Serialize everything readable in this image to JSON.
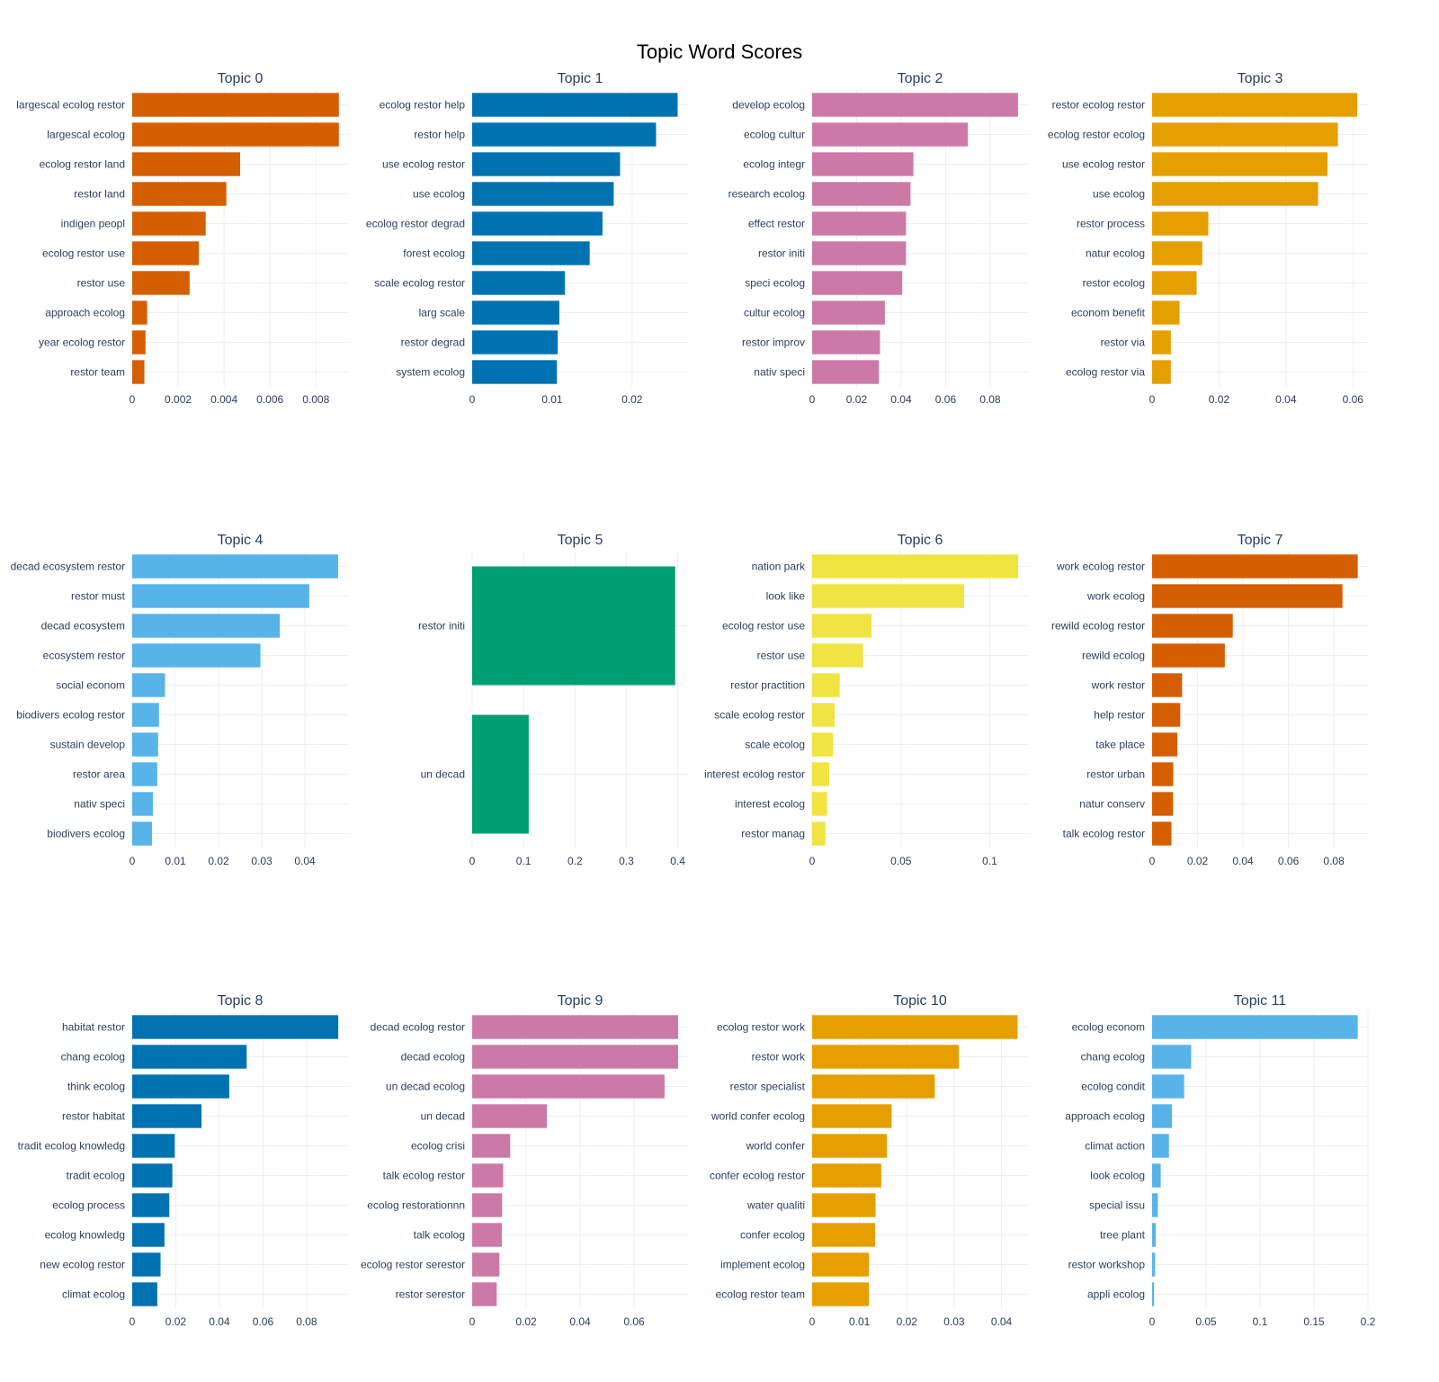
{
  "chart_data": {
    "type": "bar",
    "orientation": "horizontal",
    "title": "Topic Word Scores",
    "grid": true,
    "panels": [
      {
        "title": "Topic 0",
        "color": "#D55E00",
        "xlim": [
          0,
          0.0094
        ],
        "xticks": [
          0,
          0.002,
          0.004,
          0.006,
          0.008
        ],
        "xtick_labels": [
          "0",
          "0.002",
          "0.004",
          "0.006",
          "0.008"
        ],
        "categories": [
          "largescal ecolog restor",
          "largescal ecolog",
          "ecolog restor land",
          "restor land",
          "indigen peopl",
          "ecolog restor use",
          "restor use",
          "approach ecolog",
          "year ecolog restor",
          "restor team"
        ],
        "values": [
          0.009,
          0.009,
          0.0047,
          0.0041,
          0.0032,
          0.0029,
          0.0025,
          0.00065,
          0.00058,
          0.00053
        ]
      },
      {
        "title": "Topic 1",
        "color": "#0072B2",
        "xlim": [
          0,
          0.027
        ],
        "xticks": [
          0,
          0.01,
          0.02
        ],
        "xtick_labels": [
          "0",
          "0.01",
          "0.02"
        ],
        "categories": [
          "ecolog restor help",
          "restor help",
          "use ecolog restor",
          "use ecolog",
          "ecolog restor degrad",
          "forest ecolog",
          "scale ecolog restor",
          "larg scale",
          "restor degrad",
          "system ecolog"
        ],
        "values": [
          0.0257,
          0.023,
          0.0185,
          0.0177,
          0.0163,
          0.0147,
          0.0116,
          0.0109,
          0.0107,
          0.0106
        ]
      },
      {
        "title": "Topic 2",
        "color": "#CC79A7",
        "xlim": [
          0,
          0.097
        ],
        "xticks": [
          0,
          0.02,
          0.04,
          0.06,
          0.08
        ],
        "xtick_labels": [
          "0",
          "0.02",
          "0.04",
          "0.06",
          "0.08"
        ],
        "categories": [
          "develop ecolog",
          "ecolog cultur",
          "ecolog integr",
          "research ecolog",
          "effect restor",
          "restor initi",
          "speci ecolog",
          "cultur ecolog",
          "restor improv",
          "nativ speci"
        ],
        "values": [
          0.0925,
          0.07,
          0.0455,
          0.0442,
          0.0422,
          0.0422,
          0.0405,
          0.0327,
          0.0305,
          0.03
        ]
      },
      {
        "title": "Topic 3",
        "color": "#E69F00",
        "xlim": [
          0,
          0.0645
        ],
        "xticks": [
          0,
          0.02,
          0.04,
          0.06
        ],
        "xtick_labels": [
          "0",
          "0.02",
          "0.04",
          "0.06"
        ],
        "categories": [
          "restor ecolog restor",
          "ecolog restor ecolog",
          "use ecolog restor",
          "use ecolog",
          "restor process",
          "natur ecolog",
          "restor ecolog",
          "econom benefit",
          "restor via",
          "ecolog restor via"
        ],
        "values": [
          0.0613,
          0.0555,
          0.0524,
          0.0496,
          0.0168,
          0.015,
          0.0133,
          0.0082,
          0.0056,
          0.0056
        ]
      },
      {
        "title": "Topic 4",
        "color": "#56B4E9",
        "xlim": [
          0,
          0.05
        ],
        "xticks": [
          0,
          0.01,
          0.02,
          0.03,
          0.04
        ],
        "xtick_labels": [
          "0",
          "0.01",
          "0.02",
          "0.03",
          "0.04"
        ],
        "categories": [
          "decad ecosystem restor",
          "restor must",
          "decad ecosystem",
          "ecosystem restor",
          "social econom",
          "biodivers ecolog restor",
          "sustain develop",
          "restor area",
          "nativ speci",
          "biodivers ecolog"
        ],
        "values": [
          0.0477,
          0.041,
          0.0342,
          0.0297,
          0.0076,
          0.0062,
          0.006,
          0.0058,
          0.0048,
          0.0046
        ]
      },
      {
        "title": "Topic 5",
        "color": "#009E73",
        "xlim": [
          0,
          0.42
        ],
        "xticks": [
          0,
          0.1,
          0.2,
          0.3,
          0.4
        ],
        "xtick_labels": [
          "0",
          "0.1",
          "0.2",
          "0.3",
          "0.4"
        ],
        "categories": [
          "restor initi",
          "un decad"
        ],
        "values": [
          0.395,
          0.11
        ]
      },
      {
        "title": "Topic 6",
        "color": "#F0E442",
        "xlim": [
          0,
          0.1215
        ],
        "xticks": [
          0,
          0.05,
          0.1
        ],
        "xtick_labels": [
          "0",
          "0.05",
          "0.1"
        ],
        "categories": [
          "nation park",
          "look like",
          "ecolog restor use",
          "restor use",
          "restor practition",
          "scale ecolog restor",
          "scale ecolog",
          "interest ecolog restor",
          "interest ecolog",
          "restor manag"
        ],
        "values": [
          0.116,
          0.0855,
          0.0335,
          0.0287,
          0.0155,
          0.0127,
          0.0117,
          0.0096,
          0.0085,
          0.0075
        ]
      },
      {
        "title": "Topic 7",
        "color": "#D55E00",
        "xlim": [
          0,
          0.095
        ],
        "xticks": [
          0,
          0.02,
          0.04,
          0.06,
          0.08
        ],
        "xtick_labels": [
          "0",
          "0.02",
          "0.04",
          "0.06",
          "0.08"
        ],
        "categories": [
          "work ecolog restor",
          "work ecolog",
          "rewild ecolog restor",
          "rewild ecolog",
          "work restor",
          "help restor",
          "take place",
          "restor urban",
          "natur conserv",
          "talk ecolog restor"
        ],
        "values": [
          0.0905,
          0.0838,
          0.0355,
          0.032,
          0.0132,
          0.0124,
          0.0111,
          0.0093,
          0.0092,
          0.0085
        ]
      },
      {
        "title": "Topic 8",
        "color": "#0072B2",
        "xlim": [
          0,
          0.099
        ],
        "xticks": [
          0,
          0.02,
          0.04,
          0.06,
          0.08
        ],
        "xtick_labels": [
          "0",
          "0.02",
          "0.04",
          "0.06",
          "0.08"
        ],
        "categories": [
          "habitat restor",
          "chang ecolog",
          "think ecolog",
          "restor habitat",
          "tradit ecolog knowledg",
          "tradit ecolog",
          "ecolog process",
          "ecolog knowledg",
          "new ecolog restor",
          "climat ecolog"
        ],
        "values": [
          0.0945,
          0.0525,
          0.0445,
          0.0318,
          0.0195,
          0.0184,
          0.017,
          0.0148,
          0.013,
          0.0115
        ]
      },
      {
        "title": "Topic 9",
        "color": "#CC79A7",
        "xlim": [
          0,
          0.08
        ],
        "xticks": [
          0,
          0.02,
          0.04,
          0.06
        ],
        "xtick_labels": [
          "0",
          "0.02",
          "0.04",
          "0.06"
        ],
        "categories": [
          "decad ecolog restor",
          "decad ecolog",
          "un decad ecolog",
          "un decad",
          "ecolog crisi",
          "talk ecolog restor",
          "ecolog restorationnn",
          "talk ecolog",
          "ecolog restor serestor",
          "restor serestor"
        ],
        "values": [
          0.0763,
          0.0763,
          0.0713,
          0.0277,
          0.0141,
          0.0115,
          0.0111,
          0.011,
          0.0101,
          0.0091
        ]
      },
      {
        "title": "Topic 10",
        "color": "#E69F00",
        "xlim": [
          0,
          0.0456
        ],
        "xticks": [
          0,
          0.01,
          0.02,
          0.03,
          0.04
        ],
        "xtick_labels": [
          "0",
          "0.01",
          "0.02",
          "0.03",
          "0.04"
        ],
        "categories": [
          "ecolog restor work",
          "restor work",
          "restor specialist",
          "world confer ecolog",
          "world confer",
          "confer ecolog restor",
          "water qualiti",
          "confer ecolog",
          "implement ecolog",
          "ecolog restor team"
        ],
        "values": [
          0.0434,
          0.031,
          0.0259,
          0.0168,
          0.0158,
          0.0146,
          0.0134,
          0.0133,
          0.012,
          0.012
        ]
      },
      {
        "title": "Topic 11",
        "color": "#56B4E9",
        "xlim": [
          0,
          0.2
        ],
        "xticks": [
          0,
          0.05,
          0.1,
          0.15,
          0.2
        ],
        "xtick_labels": [
          "0",
          "0.05",
          "0.1",
          "0.15",
          "0.2"
        ],
        "categories": [
          "ecolog econom",
          "chang ecolog",
          "ecolog condit",
          "approach ecolog",
          "climat action",
          "look ecolog",
          "special issu",
          "tree plant",
          "restor workshop",
          "appli ecolog"
        ],
        "values": [
          0.1905,
          0.0362,
          0.0297,
          0.0185,
          0.0156,
          0.008,
          0.0053,
          0.0033,
          0.0028,
          0.0018
        ]
      }
    ]
  }
}
